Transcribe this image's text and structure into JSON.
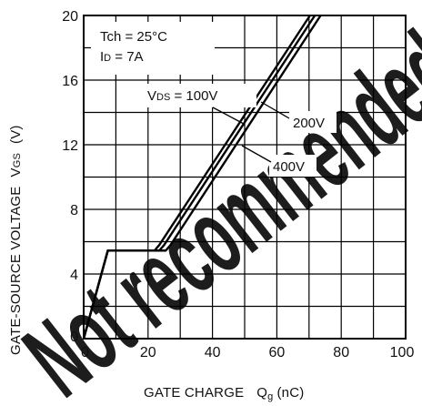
{
  "chart_data": {
    "type": "line",
    "xlim": [
      0,
      100
    ],
    "ylim": [
      0,
      20
    ],
    "x_ticks": [
      "0",
      "20",
      "40",
      "60",
      "80",
      "100"
    ],
    "y_ticks": [
      "0",
      "4",
      "8",
      "12",
      "16",
      "20"
    ],
    "grid": true,
    "xlabel": {
      "main": "GATE CHARGE",
      "symbol": "Q",
      "subscript": "g",
      "unit": "(nC)"
    },
    "ylabel": {
      "main": "GATE-SOURCE VOLTAGE",
      "symbol": "V",
      "subscript": "GS",
      "unit": "(V)"
    },
    "conditions": [
      {
        "label": "Tch = 25°C"
      },
      {
        "label": "I",
        "subscript": "D",
        "rest": " = 7A"
      }
    ],
    "line_color": "#000000",
    "series": [
      {
        "name": "VDS = 100V",
        "display": {
          "main": "V",
          "subscript": "DS",
          "rest": " = 100V"
        },
        "points": [
          [
            0,
            0
          ],
          [
            7.5,
            5.45
          ],
          [
            22,
            5.45
          ],
          [
            23.5,
            5.8
          ],
          [
            70.3,
            20
          ]
        ]
      },
      {
        "name": "200V",
        "display": {
          "main": "200V"
        },
        "points": [
          [
            0,
            0
          ],
          [
            7.5,
            5.45
          ],
          [
            23.5,
            5.45
          ],
          [
            25,
            5.8
          ],
          [
            71.8,
            20
          ]
        ]
      },
      {
        "name": "400V",
        "display": {
          "main": "400V"
        },
        "points": [
          [
            0,
            0
          ],
          [
            7.5,
            5.45
          ],
          [
            25.5,
            5.45
          ],
          [
            27,
            5.8
          ],
          [
            73.6,
            20
          ]
        ]
      }
    ]
  },
  "watermark": {
    "text": "Not recommended",
    "color": "#e8202a"
  }
}
